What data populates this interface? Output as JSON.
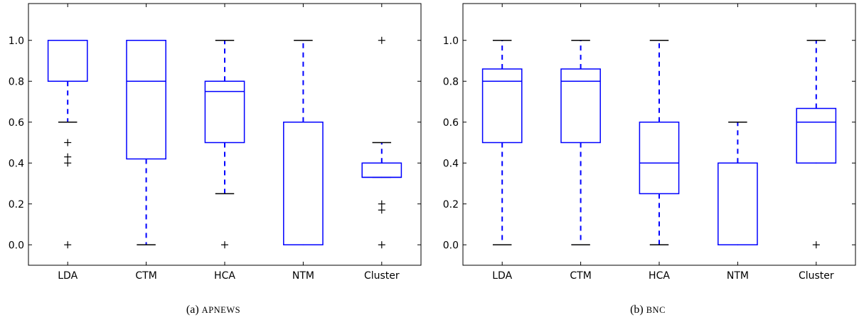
{
  "chart_data": [
    {
      "type": "box",
      "caption_prefix": "(a)",
      "caption_name": "APNEWS",
      "categories": [
        "LDA",
        "CTM",
        "HCA",
        "NTM",
        "Cluster"
      ],
      "yticks": [
        "0.0",
        "0.2",
        "0.4",
        "0.6",
        "0.8",
        "1.0"
      ],
      "ylim": [
        -0.1,
        1.18
      ],
      "grid": false,
      "boxes": [
        {
          "name": "LDA",
          "whisker_low": 0.6,
          "q1": 0.8,
          "median": 1.0,
          "q3": 1.0,
          "whisker_high": 1.0,
          "outliers": [
            0.5,
            0.43,
            0.4,
            0.0
          ]
        },
        {
          "name": "CTM",
          "whisker_low": 0.0,
          "q1": 0.42,
          "median": 0.8,
          "q3": 1.0,
          "whisker_high": 1.0,
          "outliers": []
        },
        {
          "name": "HCA",
          "whisker_low": 0.25,
          "q1": 0.5,
          "median": 0.75,
          "q3": 0.8,
          "whisker_high": 1.0,
          "outliers": [
            0.0
          ]
        },
        {
          "name": "NTM",
          "whisker_low": 0.0,
          "q1": 0.0,
          "median": 0.0,
          "q3": 0.6,
          "whisker_high": 1.0,
          "outliers": []
        },
        {
          "name": "Cluster",
          "whisker_low": 0.33,
          "q1": 0.33,
          "median": 0.33,
          "q3": 0.4,
          "whisker_high": 0.5,
          "outliers": [
            1.0,
            0.2,
            0.17,
            0.0
          ]
        }
      ]
    },
    {
      "type": "box",
      "caption_prefix": "(b)",
      "caption_name": "BNC",
      "categories": [
        "LDA",
        "CTM",
        "HCA",
        "NTM",
        "Cluster"
      ],
      "yticks": [
        "0.0",
        "0.2",
        "0.4",
        "0.6",
        "0.8",
        "1.0"
      ],
      "ylim": [
        -0.1,
        1.18
      ],
      "grid": false,
      "boxes": [
        {
          "name": "LDA",
          "whisker_low": 0.0,
          "q1": 0.5,
          "median": 0.8,
          "q3": 0.86,
          "whisker_high": 1.0,
          "outliers": []
        },
        {
          "name": "CTM",
          "whisker_low": 0.0,
          "q1": 0.5,
          "median": 0.8,
          "q3": 0.86,
          "whisker_high": 1.0,
          "outliers": []
        },
        {
          "name": "HCA",
          "whisker_low": 0.0,
          "q1": 0.25,
          "median": 0.4,
          "q3": 0.6,
          "whisker_high": 1.0,
          "outliers": []
        },
        {
          "name": "NTM",
          "whisker_low": 0.0,
          "q1": 0.0,
          "median": 0.0,
          "q3": 0.4,
          "whisker_high": 0.6,
          "outliers": []
        },
        {
          "name": "Cluster",
          "whisker_low": 0.4,
          "q1": 0.4,
          "median": 0.6,
          "q3": 0.667,
          "whisker_high": 1.0,
          "outliers": [
            0.0
          ]
        }
      ]
    }
  ],
  "colors": {
    "box": "#0000ff",
    "whisker": "#0000ff",
    "cap": "#000000",
    "outlier": "#000000",
    "axis": "#000000"
  }
}
